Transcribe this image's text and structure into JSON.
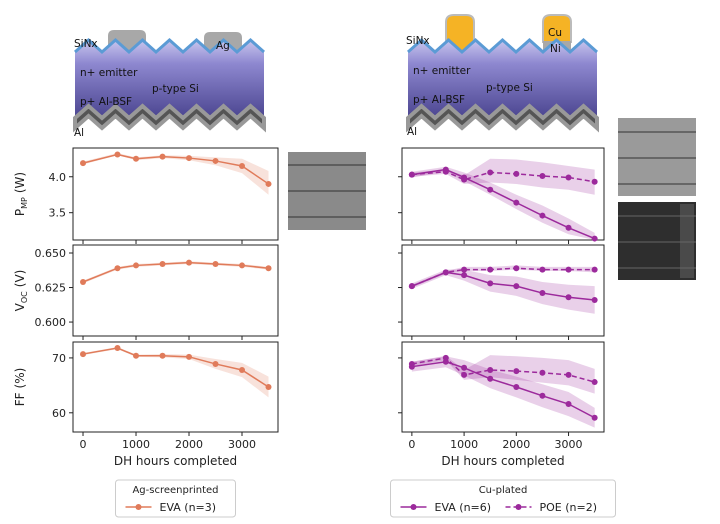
{
  "diagrams": [
    {
      "labels": [
        "SiNx",
        "Ag",
        "n+ emitter",
        "p-type Si",
        "p+ Al-BSF",
        "Al"
      ]
    },
    {
      "labels": [
        "SiNx",
        "Cu",
        "Ni",
        "n+ emitter",
        "p-type Si",
        "p+ Al-BSF",
        "Al"
      ]
    }
  ],
  "chart_data": [
    {
      "type": "line",
      "ylabel": {
        "main": "P",
        "sub": "MP",
        "unit": "(W)"
      },
      "x": [
        0,
        650,
        1000,
        1500,
        2000,
        2500,
        3000,
        3500
      ],
      "xlim": [
        -189,
        3679
      ],
      "xticks": [
        0,
        1000,
        2000,
        3000
      ],
      "ylim": [
        3.12,
        4.4
      ],
      "yticks": [
        {
          "value": 4,
          "label": "4.0"
        },
        3.5
      ],
      "series": [
        {
          "color": "#e07b5a",
          "style": "solid",
          "values": [
            4.19,
            4.31,
            4.25,
            4.28,
            4.26,
            4.22,
            4.15,
            3.9
          ],
          "lower": [
            4.17,
            4.3,
            4.23,
            4.26,
            4.23,
            4.16,
            4.05,
            3.75
          ],
          "upper": [
            4.21,
            4.33,
            4.27,
            4.3,
            4.29,
            4.27,
            4.25,
            4.08
          ]
        }
      ]
    },
    {
      "type": "line",
      "ylabel": {
        "main": "V",
        "sub": "OC",
        "unit": "(V)"
      },
      "x": [
        0,
        650,
        1000,
        1500,
        2000,
        2500,
        3000,
        3500
      ],
      "xlim": [
        -189,
        3679
      ],
      "xticks": [
        0,
        1000,
        2000,
        3000
      ],
      "ylim": [
        0.5899,
        0.6558
      ],
      "yticks": [
        {
          "value": 0.65,
          "label": "0.650"
        },
        {
          "value": 0.625,
          "label": "0.625"
        },
        {
          "value": 0.6,
          "label": "0.600"
        }
      ],
      "series": [
        {
          "color": "#e07b5a",
          "style": "solid",
          "values": [
            0.629,
            0.639,
            0.641,
            0.642,
            0.643,
            0.642,
            0.641,
            0.639
          ],
          "lower": [
            0.628,
            0.638,
            0.64,
            0.641,
            0.642,
            0.641,
            0.64,
            0.638
          ],
          "upper": [
            0.63,
            0.64,
            0.642,
            0.643,
            0.644,
            0.643,
            0.642,
            0.64
          ]
        }
      ]
    },
    {
      "type": "line",
      "ylabel": {
        "main": "FF",
        "sub": "",
        "unit": "(%)"
      },
      "xlabel": "DH hours completed",
      "legend_title": "Ag-screenprinted",
      "x": [
        0,
        650,
        1000,
        1500,
        2000,
        2500,
        3000,
        3500
      ],
      "xlim": [
        -189,
        3679
      ],
      "xticks": [
        0,
        1000,
        2000,
        3000
      ],
      "ylim": [
        56.5,
        72.9
      ],
      "yticks": [
        70,
        60
      ],
      "series": [
        {
          "name": "EVA (n=3)",
          "color": "#e07b5a",
          "style": "solid",
          "values": [
            70.7,
            71.8,
            70.4,
            70.4,
            70.2,
            68.9,
            67.8,
            64.7
          ],
          "lower": [
            70.5,
            71.6,
            70.2,
            70.1,
            69.8,
            68,
            66.5,
            62.8
          ],
          "upper": [
            70.9,
            72,
            70.6,
            70.7,
            70.6,
            69.8,
            69.1,
            66.6
          ]
        }
      ]
    },
    {
      "type": "line",
      "x": [
        0,
        650,
        1000,
        1500,
        2000,
        2500,
        3000,
        3500
      ],
      "xlim": [
        -189,
        3679
      ],
      "xticks": [
        0,
        1000,
        2000,
        3000
      ],
      "ylim": [
        3.12,
        4.4
      ],
      "yticks": [
        4,
        3.5
      ],
      "series": [
        {
          "color": "#9c2a9c",
          "style": "solid",
          "values": [
            4.03,
            4.1,
            3.99,
            3.82,
            3.64,
            3.46,
            3.29,
            3.14
          ],
          "lower": [
            3.99,
            4.07,
            3.94,
            3.75,
            3.55,
            3.36,
            3.2,
            3.12
          ],
          "upper": [
            4.07,
            4.14,
            4.06,
            3.92,
            3.75,
            3.6,
            3.42,
            3.22
          ]
        },
        {
          "color": "#9c2a9c",
          "style": "dashed",
          "values": [
            4.03,
            4.07,
            3.96,
            4.06,
            4.04,
            4.01,
            3.99,
            3.93
          ],
          "lower": [
            4,
            4.04,
            3.9,
            3.92,
            3.9,
            3.85,
            3.82,
            3.75
          ],
          "upper": [
            4.06,
            4.1,
            4.02,
            4.25,
            4.24,
            4.2,
            4.15,
            4.1
          ]
        }
      ]
    },
    {
      "type": "line",
      "x": [
        0,
        650,
        1000,
        1500,
        2000,
        2500,
        3000,
        3500
      ],
      "xlim": [
        -189,
        3679
      ],
      "xticks": [
        0,
        1000,
        2000,
        3000
      ],
      "ylim": [
        0.5899,
        0.6558
      ],
      "yticks": [
        0.65,
        0.625,
        0.6
      ],
      "series": [
        {
          "color": "#9c2a9c",
          "style": "solid",
          "values": [
            0.626,
            0.636,
            0.634,
            0.628,
            0.626,
            0.621,
            0.618,
            0.616
          ],
          "lower": [
            0.624,
            0.634,
            0.63,
            0.622,
            0.619,
            0.613,
            0.609,
            0.606
          ],
          "upper": [
            0.628,
            0.638,
            0.638,
            0.634,
            0.633,
            0.629,
            0.627,
            0.626
          ]
        },
        {
          "color": "#9c2a9c",
          "style": "dashed",
          "values": [
            0.626,
            0.636,
            0.638,
            0.638,
            0.639,
            0.638,
            0.638,
            0.638
          ],
          "lower": [
            0.625,
            0.635,
            0.637,
            0.637,
            0.638,
            0.637,
            0.637,
            0.636
          ],
          "upper": [
            0.627,
            0.637,
            0.64,
            0.64,
            0.641,
            0.64,
            0.64,
            0.64
          ]
        }
      ]
    },
    {
      "type": "line",
      "xlabel": "DH hours completed",
      "legend_title": "Cu-plated",
      "x": [
        0,
        650,
        1000,
        1500,
        2000,
        2500,
        3000,
        3500
      ],
      "xlim": [
        -189,
        3679
      ],
      "xticks": [
        0,
        1000,
        2000,
        3000
      ],
      "ylim": [
        56.5,
        72.9
      ],
      "yticks": [
        70,
        60
      ],
      "series": [
        {
          "name": "EVA (n=6)",
          "color": "#9c2a9c",
          "style": "solid",
          "values": [
            68.4,
            69.3,
            68.2,
            66.2,
            64.7,
            63.1,
            61.6,
            59.1
          ],
          "lower": [
            67.5,
            68.3,
            66.8,
            64.5,
            62.8,
            61,
            59.4,
            57.3
          ],
          "upper": [
            69.3,
            70.3,
            69.6,
            67.9,
            66.6,
            65.2,
            63.8,
            60.9
          ]
        },
        {
          "name": "POE (n=2)",
          "color": "#9c2a9c",
          "style": "dashed",
          "values": [
            68.9,
            70,
            66.9,
            67.8,
            67.6,
            67.3,
            66.9,
            65.6
          ],
          "lower": [
            68.5,
            69.6,
            66,
            66.5,
            66,
            65.5,
            65,
            63.5
          ],
          "upper": [
            69.3,
            70.4,
            67.8,
            70.5,
            70.3,
            70,
            69.6,
            68
          ]
        }
      ]
    }
  ]
}
